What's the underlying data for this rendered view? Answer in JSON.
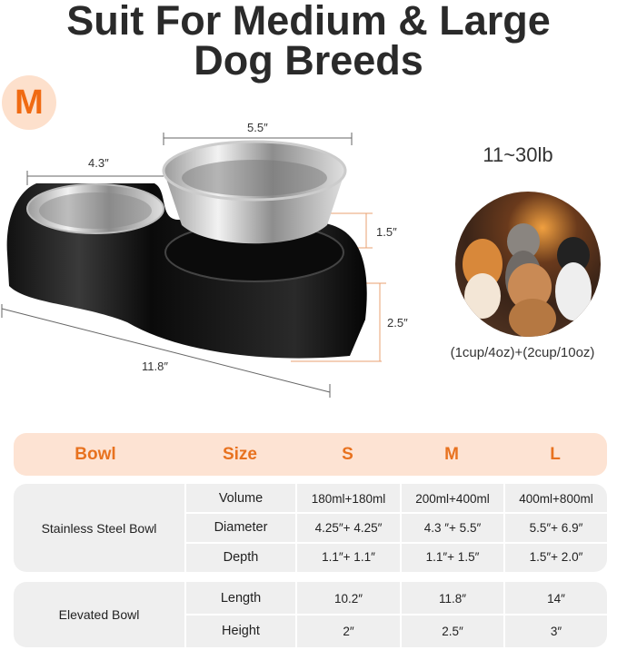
{
  "title": {
    "line1": "Suit For Medium & Large",
    "line2": "Dog Breeds"
  },
  "size_badge": "M",
  "dimensions": {
    "small_bowl_diameter": "4.3″",
    "large_bowl_diameter": "5.5″",
    "bowl_depth": "1.5″",
    "stand_height": "2.5″",
    "stand_length": "11.8″"
  },
  "weight_range": "11~30lb",
  "capacity": "(1cup/4oz)+(2cup/10oz)",
  "colors": {
    "accent": "#e8721f",
    "header_bg": "#fde3d3",
    "row_bg": "#efefef"
  },
  "table": {
    "headers": [
      "Bowl",
      "Size",
      "S",
      "M",
      "L"
    ],
    "groups": [
      {
        "name": "Stainless Steel Bowl",
        "rows": [
          {
            "attr": "Volume",
            "values": [
              "180ml+180ml",
              "200ml+400ml",
              "400ml+800ml"
            ]
          },
          {
            "attr": "Diameter",
            "values": [
              "4.25″+ 4.25″",
              "4.3 ″+ 5.5″",
              "5.5″+ 6.9″"
            ]
          },
          {
            "attr": "Depth",
            "values": [
              "1.1″+ 1.1″",
              "1.1″+ 1.5″",
              "1.5″+ 2.0″"
            ]
          }
        ]
      },
      {
        "name": "Elevated Bowl",
        "rows": [
          {
            "attr": "Length",
            "values": [
              "10.2″",
              "11.8″",
              "14″"
            ]
          },
          {
            "attr": "Height",
            "values": [
              "2″",
              "2.5″",
              "3″"
            ]
          }
        ]
      }
    ]
  }
}
